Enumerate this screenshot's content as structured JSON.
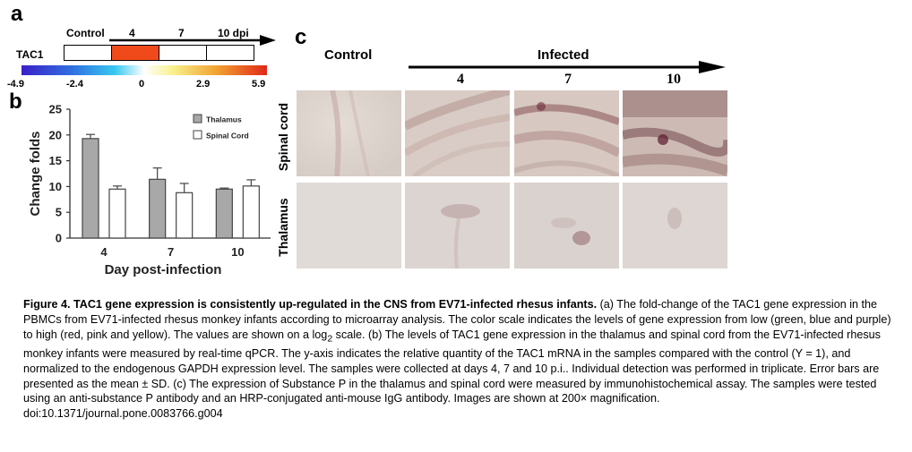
{
  "panel_a": {
    "letter": "a",
    "gene_label": "TAC1",
    "column_labels": [
      "Control",
      "4",
      "7",
      "10 dpi"
    ],
    "cell_colors": [
      "#ffffff",
      "#f04a1a",
      "#ffffff",
      "#ffffff"
    ],
    "scale_labels": [
      "-4.9",
      "-2.4",
      "0",
      "2.9",
      "5.9"
    ],
    "scale_min": -4.9,
    "scale_max": 5.9
  },
  "panel_b": {
    "letter": "b"
  },
  "panel_c": {
    "letter": "c",
    "control_label": "Control",
    "infected_label": "Infected",
    "days": [
      "4",
      "7",
      "10"
    ],
    "row_labels": [
      "Spinal cord",
      "Thalamus"
    ]
  },
  "chart_data": {
    "type": "bar",
    "categories": [
      "4",
      "7",
      "10"
    ],
    "series": [
      {
        "name": "Thalamus",
        "values": [
          19.3,
          11.4,
          9.5
        ],
        "errors": [
          0.8,
          2.2,
          0.2
        ],
        "color": "#a8a8a8"
      },
      {
        "name": "Spinal Cord",
        "values": [
          9.5,
          8.8,
          10.1
        ],
        "errors": [
          0.6,
          1.8,
          1.2
        ],
        "color": "#ffffff"
      }
    ],
    "xlabel": "Day post-infection",
    "ylabel": "Change folds",
    "ylim": [
      0,
      25
    ],
    "yticks": [
      "0",
      "5",
      "10",
      "15",
      "20",
      "25"
    ],
    "legend": "top-right",
    "grid": false
  },
  "caption": {
    "title": "Figure 4. TAC1 gene expression is consistently up-regulated in the CNS from EV71-infected rhesus infants.",
    "body_1": " (a) The fold-change of the TAC1 gene expression in the PBMCs from EV71-infected rhesus monkey infants according to microarray analysis. The color scale indicates the levels of gene expression from low (green, blue and purple) to high (red, pink and yellow). The values are shown on a log",
    "sub": "2",
    "body_2": " scale. (b) The levels of TAC1 gene expression in the thalamus and spinal cord from the EV71-infected rhesus monkey infants were measured by real-time qPCR. The y-axis indicates the relative quantity of the TAC1 mRNA in the samples compared with the control (Y = 1), and normalized to the endogenous GAPDH expression level. The samples were collected at days 4, 7 and 10 p.i.. Individual detection was performed in triplicate. Error bars are presented as the mean ± SD. (c) The expression of Substance P in the thalamus and spinal cord were measured by immunohistochemical assay. The samples were tested using an anti-substance P antibody and an HRP-conjugated anti-mouse IgG antibody. Images are shown at 200× magnification.",
    "doi": "doi:10.1371/journal.pone.0083766.g004"
  }
}
